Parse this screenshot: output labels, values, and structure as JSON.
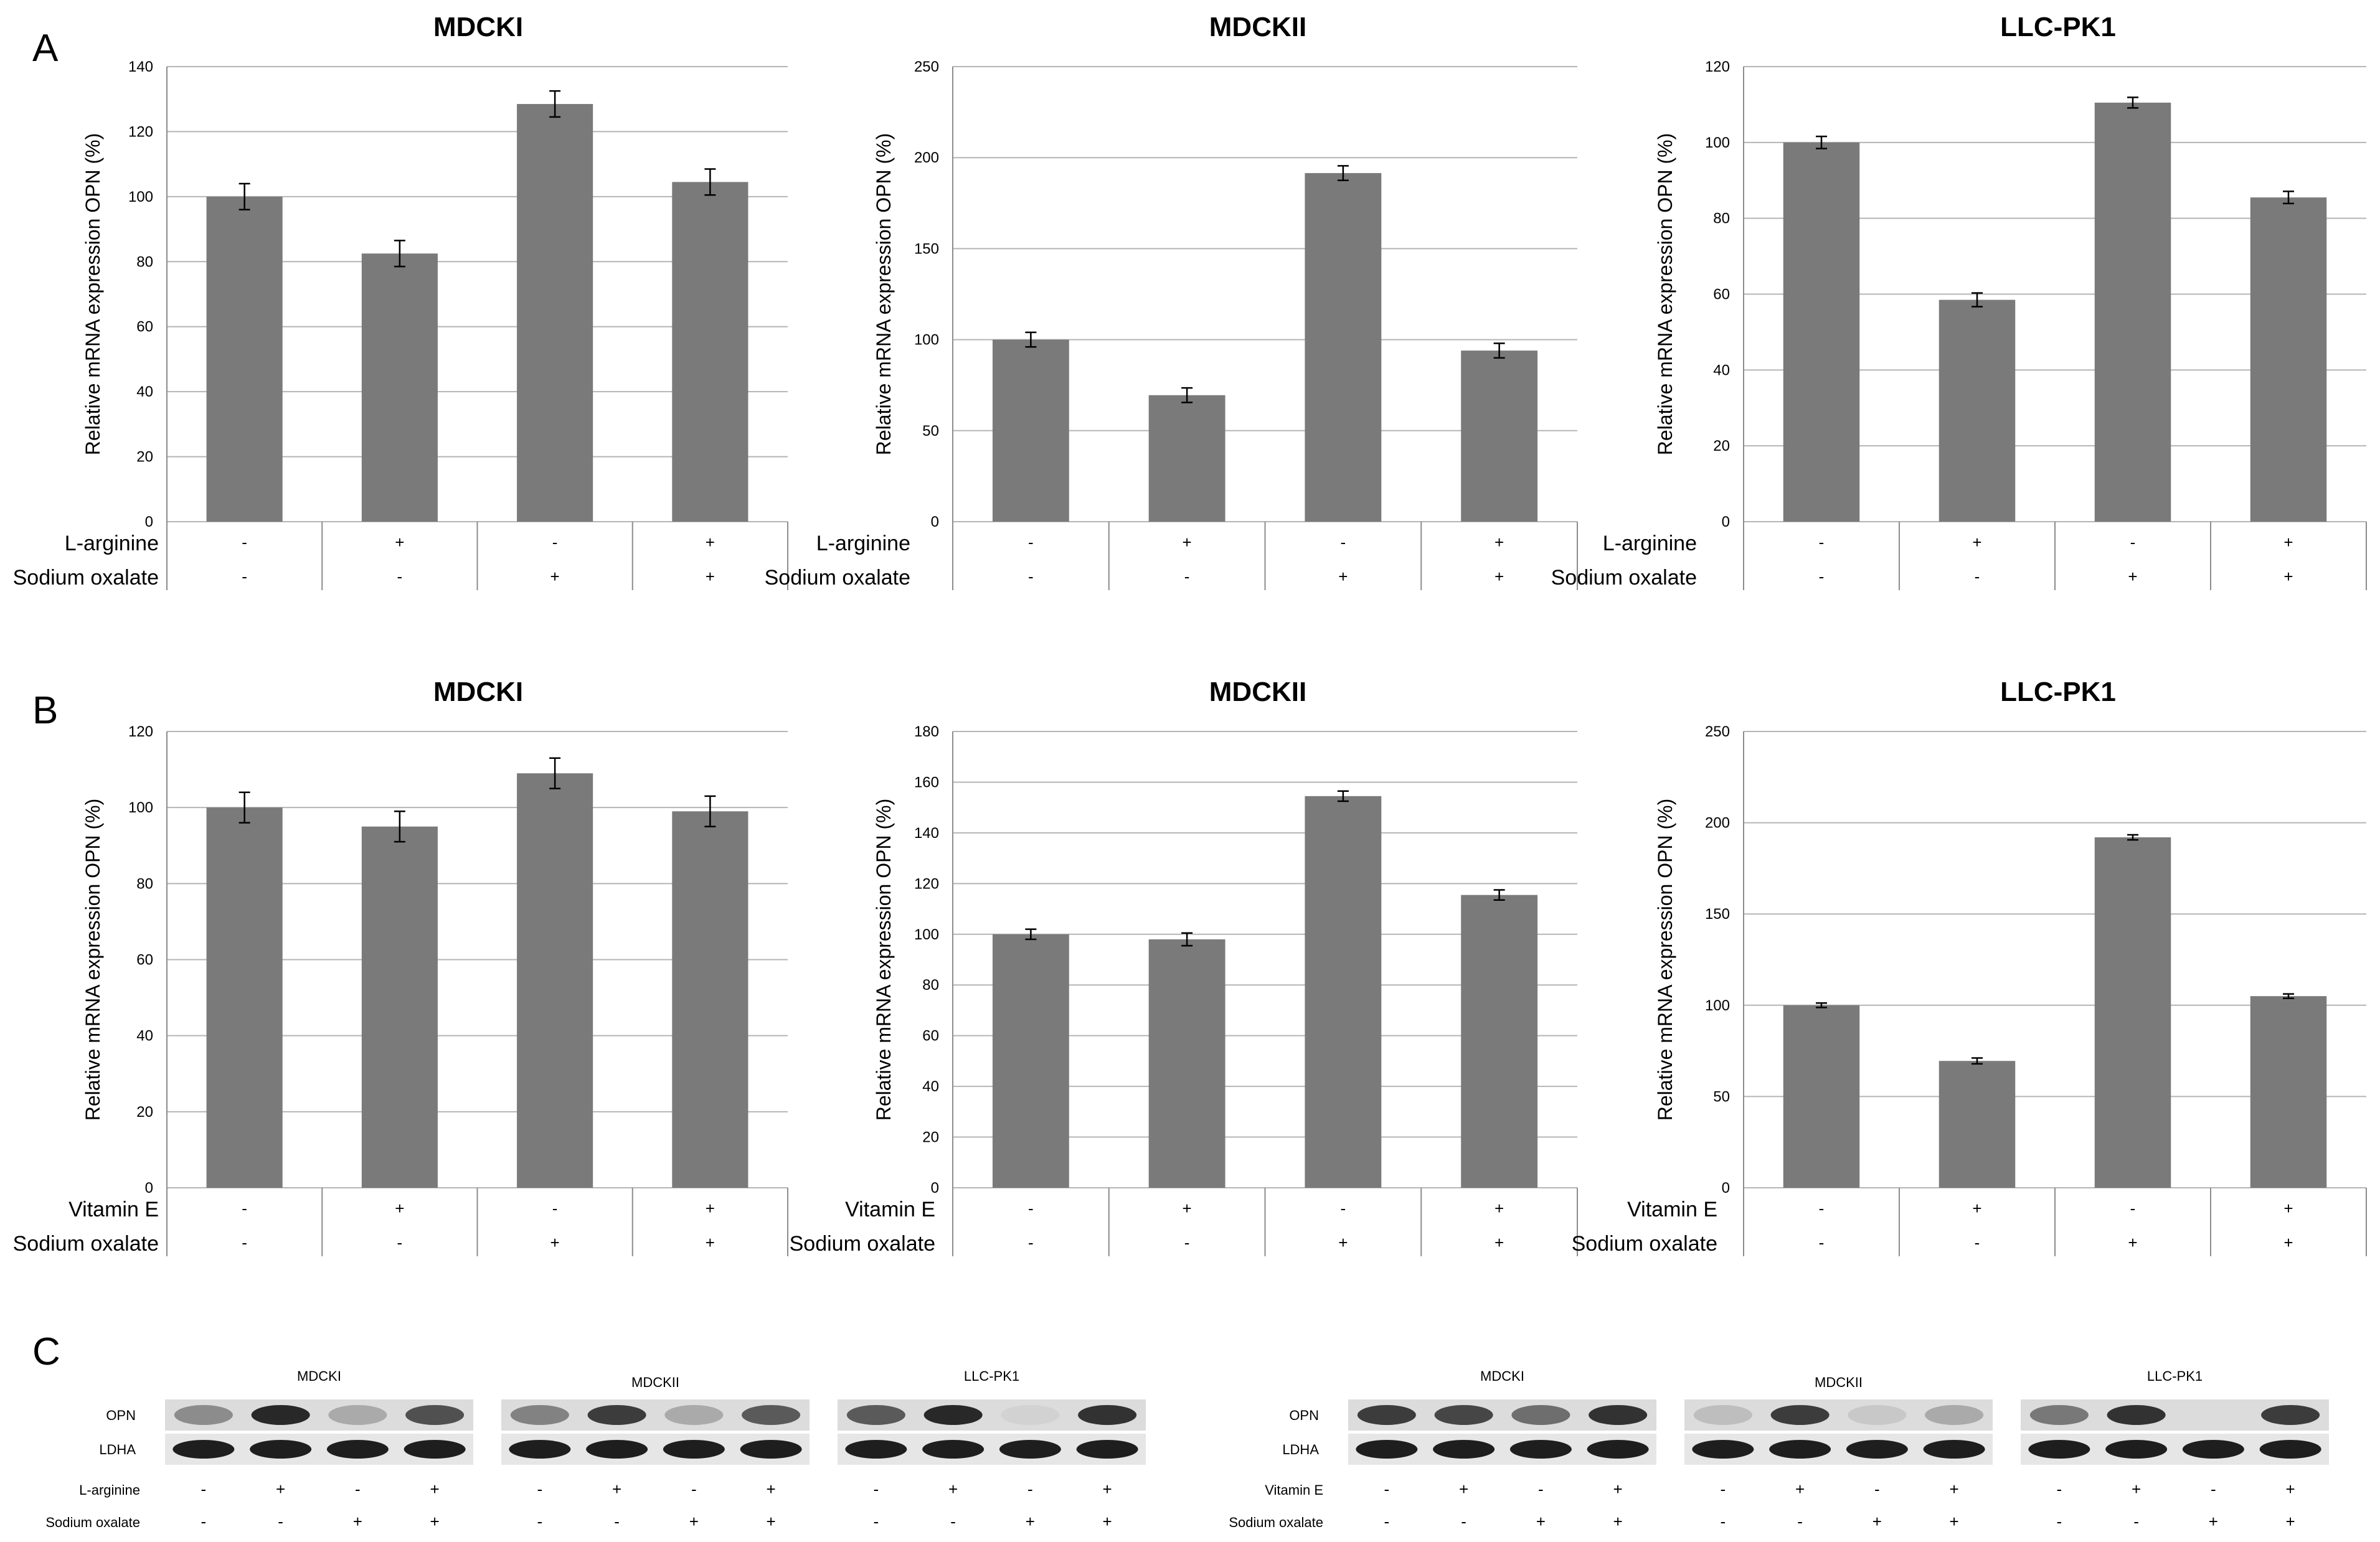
{
  "panel_labels": [
    "A",
    "B",
    "C"
  ],
  "colors": {
    "bar": "#7a7a7a",
    "grid": "#b5b5b5",
    "axis": "#8c8c8c",
    "text": "#000000"
  },
  "chart_data": [
    {
      "id": "a1",
      "panel": "A",
      "type": "bar",
      "title": "MDCKI",
      "ylabel": "Relative mRNA expression OPN (%)",
      "ylim": [
        0,
        140
      ],
      "ystep": 20,
      "values": [
        100,
        82.5,
        128.5,
        104.5
      ],
      "errors": [
        4,
        4,
        4,
        4
      ],
      "rows": [
        {
          "label": "L-arginine",
          "signs": [
            "-",
            "+",
            "-",
            "+"
          ]
        },
        {
          "label": "Sodium oxalate",
          "signs": [
            "-",
            "-",
            "+",
            "+"
          ]
        }
      ]
    },
    {
      "id": "a2",
      "panel": "A",
      "type": "bar",
      "title": "MDCKII",
      "ylabel": "Relative mRNA expression OPN (%)",
      "ylim": [
        0,
        250
      ],
      "ystep": 50,
      "values": [
        100,
        69.5,
        191.5,
        94
      ],
      "errors": [
        4,
        4,
        4,
        4
      ],
      "rows": [
        {
          "label": "L-arginine",
          "signs": [
            "-",
            "+",
            "-",
            "+"
          ]
        },
        {
          "label": "Sodium oxalate",
          "signs": [
            "-",
            "-",
            "+",
            "+"
          ]
        }
      ]
    },
    {
      "id": "a3",
      "panel": "A",
      "type": "bar",
      "title": "LLC-PK1",
      "ylabel": "Relative mRNA expression OPN (%)",
      "ylim": [
        0,
        120
      ],
      "ystep": 20,
      "values": [
        100,
        58.5,
        110.5,
        85.5
      ],
      "errors": [
        1.6,
        1.8,
        1.4,
        1.6
      ],
      "rows": [
        {
          "label": "L-arginine",
          "signs": [
            "-",
            "+",
            "-",
            "+"
          ]
        },
        {
          "label": "Sodium oxalate",
          "signs": [
            "-",
            "-",
            "+",
            "+"
          ]
        }
      ]
    },
    {
      "id": "b1",
      "panel": "B",
      "type": "bar",
      "title": "MDCKI",
      "ylabel": "Relative mRNA expression OPN (%)",
      "ylim": [
        0,
        120
      ],
      "ystep": 20,
      "values": [
        100,
        95,
        109,
        99
      ],
      "errors": [
        4,
        4,
        4,
        4
      ],
      "rows": [
        {
          "label": "Vitamin E",
          "signs": [
            "-",
            "+",
            "-",
            "+"
          ]
        },
        {
          "label": "Sodium oxalate",
          "signs": [
            "-",
            "-",
            "+",
            "+"
          ]
        }
      ]
    },
    {
      "id": "b2",
      "panel": "B",
      "type": "bar",
      "title": "MDCKII",
      "ylabel": "Relative mRNA expression OPN (%)",
      "ylim": [
        0,
        180
      ],
      "ystep": 20,
      "values": [
        100,
        98,
        154.5,
        115.5
      ],
      "errors": [
        2,
        2.5,
        2,
        2
      ],
      "rows": [
        {
          "label": "Vitamin E",
          "signs": [
            "-",
            "+",
            "-",
            "+"
          ]
        },
        {
          "label": "Sodium oxalate",
          "signs": [
            "-",
            "-",
            "+",
            "+"
          ]
        }
      ]
    },
    {
      "id": "b3",
      "panel": "B",
      "type": "bar",
      "title": "LLC-PK1",
      "ylabel": "Relative mRNA expression OPN (%)",
      "ylim": [
        0,
        250
      ],
      "ystep": 50,
      "values": [
        100,
        69.5,
        192,
        105
      ],
      "errors": [
        1.2,
        1.6,
        1.4,
        1.2
      ],
      "rows": [
        {
          "label": "Vitamin E",
          "signs": [
            "-",
            "+",
            "-",
            "+"
          ]
        },
        {
          "label": "Sodium oxalate",
          "signs": [
            "-",
            "-",
            "+",
            "+"
          ]
        }
      ]
    }
  ],
  "gel_panel": {
    "groups": [
      {
        "titles": [
          "MDCKI",
          "MDCKII",
          "LLC-PK1"
        ],
        "band_labels": [
          "OPN",
          "LDHA"
        ],
        "opn_intensity": [
          [
            0.45,
            0.95,
            0.3,
            0.75
          ],
          [
            0.5,
            0.85,
            0.3,
            0.7
          ],
          [
            0.7,
            0.95,
            0.1,
            0.9
          ]
        ],
        "rows": [
          {
            "label": "L-arginine",
            "signs": [
              "-",
              "+",
              "-",
              "+"
            ]
          },
          {
            "label": "Sodium oxalate",
            "signs": [
              "-",
              "-",
              "+",
              "+"
            ]
          }
        ]
      },
      {
        "titles": [
          "MDCKI",
          "MDCKII",
          "LLC-PK1"
        ],
        "band_labels": [
          "OPN",
          "LDHA"
        ],
        "opn_intensity": [
          [
            0.85,
            0.8,
            0.6,
            0.9
          ],
          [
            0.2,
            0.85,
            0.15,
            0.3
          ],
          [
            0.55,
            0.9,
            0.05,
            0.85
          ]
        ],
        "rows": [
          {
            "label": "Vitamin E",
            "signs": [
              "-",
              "+",
              "-",
              "+"
            ]
          },
          {
            "label": "Sodium oxalate",
            "signs": [
              "-",
              "-",
              "+",
              "+"
            ]
          }
        ]
      }
    ]
  }
}
